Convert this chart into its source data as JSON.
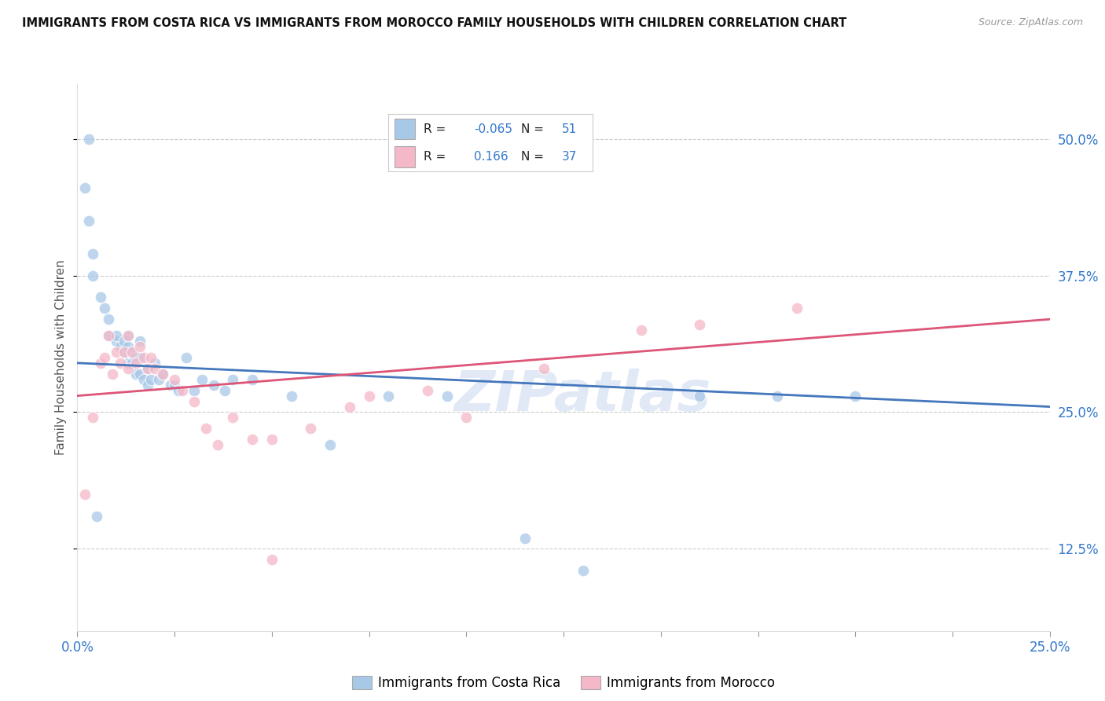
{
  "title": "IMMIGRANTS FROM COSTA RICA VS IMMIGRANTS FROM MOROCCO FAMILY HOUSEHOLDS WITH CHILDREN CORRELATION CHART",
  "source": "Source: ZipAtlas.com",
  "ylabel": "Family Households with Children",
  "xlim": [
    0.0,
    0.25
  ],
  "ylim": [
    0.05,
    0.55
  ],
  "xticks": [
    0.0,
    0.025,
    0.05,
    0.075,
    0.1,
    0.125,
    0.15,
    0.175,
    0.2,
    0.225,
    0.25
  ],
  "xticklabels_show": {
    "0.0": "0.0%",
    "0.25": "25.0%"
  },
  "yticks": [
    0.125,
    0.25,
    0.375,
    0.5
  ],
  "yticklabels": [
    "12.5%",
    "25.0%",
    "37.5%",
    "50.0%"
  ],
  "color_blue": "#a8c8e8",
  "color_pink": "#f4b8c8",
  "line_color_blue": "#4477bb",
  "line_color_pink": "#dd5577",
  "watermark": "ZIPatlas",
  "costa_rica_x": [
    0.003,
    0.002,
    0.003,
    0.004,
    0.004,
    0.006,
    0.007,
    0.008,
    0.008,
    0.01,
    0.01,
    0.011,
    0.012,
    0.012,
    0.013,
    0.013,
    0.013,
    0.014,
    0.014,
    0.015,
    0.015,
    0.016,
    0.016,
    0.016,
    0.017,
    0.018,
    0.018,
    0.019,
    0.02,
    0.021,
    0.022,
    0.024,
    0.025,
    0.026,
    0.028,
    0.03,
    0.032,
    0.035,
    0.038,
    0.04,
    0.045,
    0.055,
    0.065,
    0.08,
    0.095,
    0.115,
    0.13,
    0.16,
    0.18,
    0.2,
    0.005
  ],
  "costa_rica_y": [
    0.5,
    0.455,
    0.425,
    0.395,
    0.375,
    0.355,
    0.345,
    0.335,
    0.32,
    0.315,
    0.32,
    0.31,
    0.315,
    0.305,
    0.31,
    0.295,
    0.32,
    0.305,
    0.295,
    0.285,
    0.3,
    0.315,
    0.3,
    0.285,
    0.28,
    0.29,
    0.275,
    0.28,
    0.295,
    0.28,
    0.285,
    0.275,
    0.275,
    0.27,
    0.3,
    0.27,
    0.28,
    0.275,
    0.27,
    0.28,
    0.28,
    0.265,
    0.22,
    0.265,
    0.265,
    0.135,
    0.105,
    0.265,
    0.265,
    0.265,
    0.155
  ],
  "morocco_x": [
    0.002,
    0.004,
    0.006,
    0.007,
    0.008,
    0.009,
    0.01,
    0.011,
    0.012,
    0.013,
    0.013,
    0.014,
    0.015,
    0.016,
    0.017,
    0.018,
    0.019,
    0.02,
    0.022,
    0.025,
    0.027,
    0.03,
    0.033,
    0.036,
    0.04,
    0.045,
    0.05,
    0.06,
    0.07,
    0.075,
    0.09,
    0.1,
    0.12,
    0.145,
    0.16,
    0.185,
    0.05
  ],
  "morocco_y": [
    0.175,
    0.245,
    0.295,
    0.3,
    0.32,
    0.285,
    0.305,
    0.295,
    0.305,
    0.29,
    0.32,
    0.305,
    0.295,
    0.31,
    0.3,
    0.29,
    0.3,
    0.29,
    0.285,
    0.28,
    0.27,
    0.26,
    0.235,
    0.22,
    0.245,
    0.225,
    0.225,
    0.235,
    0.255,
    0.265,
    0.27,
    0.245,
    0.29,
    0.325,
    0.33,
    0.345,
    0.115
  ],
  "line_blue_x0": 0.0,
  "line_blue_x1": 0.25,
  "line_blue_y0": 0.295,
  "line_blue_y1": 0.255,
  "line_pink_x0": 0.0,
  "line_pink_x1": 0.25,
  "line_pink_y0": 0.265,
  "line_pink_y1": 0.335
}
